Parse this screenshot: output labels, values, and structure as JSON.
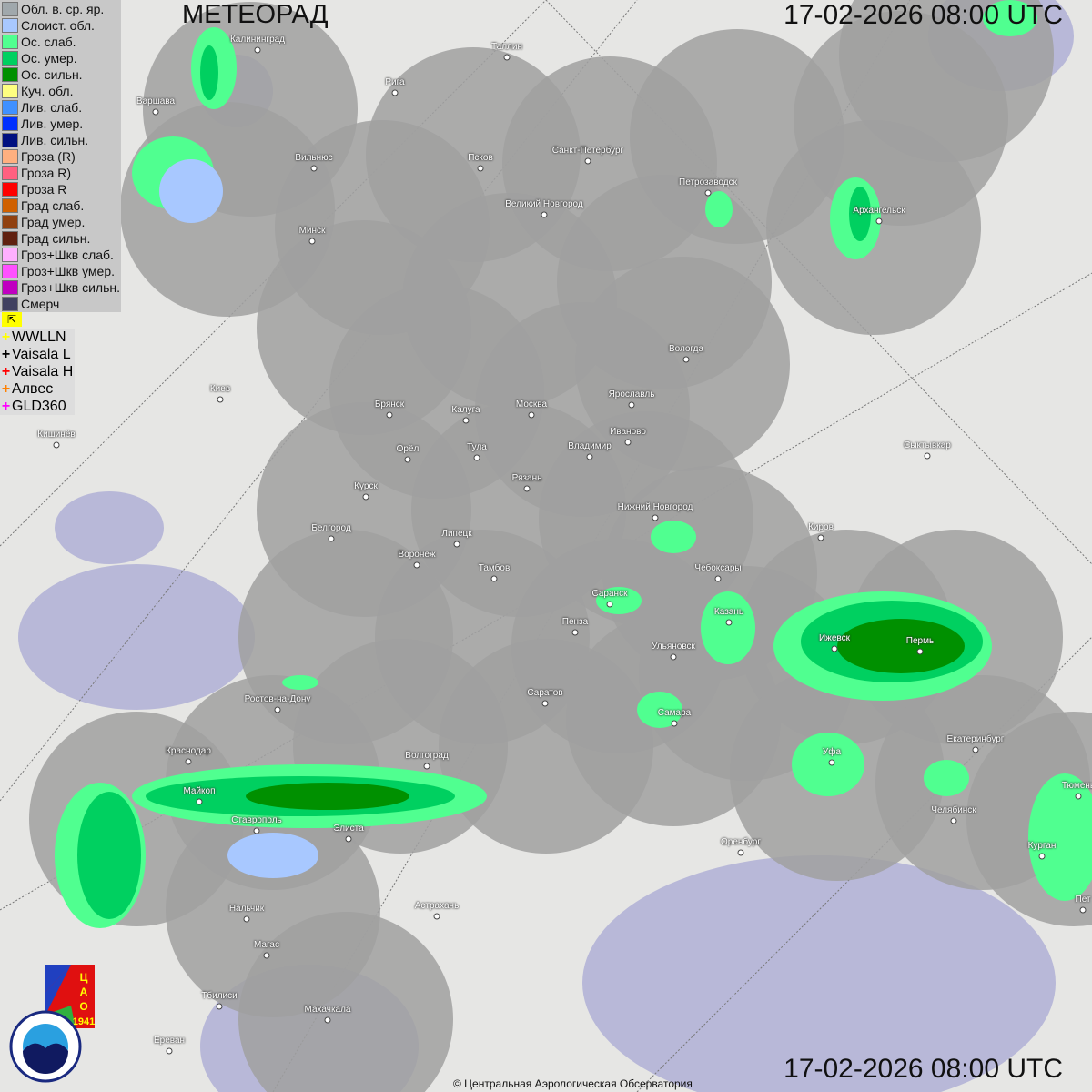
{
  "header": {
    "title": "МЕТЕОРАД",
    "datetime": "17-02-2026  08:00 UTC"
  },
  "footer": {
    "datetime": "17-02-2026  08:00 UTC",
    "copyright": "© Центральная Аэрологическая Обсерватория"
  },
  "legend": [
    {
      "label": "Обл. в. ср. яр.",
      "color": "#a0a8ac"
    },
    {
      "label": "Слоист. обл.",
      "color": "#a8c8ff"
    },
    {
      "label": "Ос. слаб.",
      "color": "#50ff90"
    },
    {
      "label": "Ос. умер.",
      "color": "#00d060"
    },
    {
      "label": "Ос. сильн.",
      "color": "#009000"
    },
    {
      "label": "Куч. обл.",
      "color": "#ffff80"
    },
    {
      "label": "Лив. слаб.",
      "color": "#4090ff"
    },
    {
      "label": "Лив. умер.",
      "color": "#0030ff"
    },
    {
      "label": "Лив. сильн.",
      "color": "#001080"
    },
    {
      "label": "Гроза (R)",
      "color": "#ffb080"
    },
    {
      "label": "Гроза R)",
      "color": "#ff6080"
    },
    {
      "label": "Гроза R",
      "color": "#ff0000"
    },
    {
      "label": "Град слаб.",
      "color": "#d06000"
    },
    {
      "label": "Град умер.",
      "color": "#904010"
    },
    {
      "label": "Град сильн.",
      "color": "#602010"
    },
    {
      "label": "Гроз+Шкв слаб.",
      "color": "#ffb0ff"
    },
    {
      "label": "Гроз+Шкв умер.",
      "color": "#ff50ff"
    },
    {
      "label": "Гроз+Шкв сильн.",
      "color": "#c000c0"
    },
    {
      "label": "Смерч",
      "color": "#404060"
    }
  ],
  "lightning_legend": [
    {
      "label": "WWLLN",
      "color": "#ffff00"
    },
    {
      "label": "Vaisala L",
      "color": "#000000"
    },
    {
      "label": "Vaisala H",
      "color": "#ff0000"
    },
    {
      "label": "Алвес",
      "color": "#ff8000"
    },
    {
      "label": "GLD360",
      "color": "#ff00ff"
    }
  ],
  "cities": [
    "Калининград",
    "Таллин",
    "Рига",
    "Варшава",
    "Санкт-Петербург",
    "Псков",
    "Вильнюс",
    "Петрозаводск",
    "Архангельск",
    "Великий Новгород",
    "Минск",
    "Вологда",
    "Киев",
    "Брянск",
    "Калуга",
    "Москва",
    "Ярославль",
    "Иваново",
    "Владимир",
    "Кишинёв",
    "Орёл",
    "Тула",
    "Сыктывкар",
    "Рязань",
    "Курск",
    "Нижний Новгород",
    "Белгород",
    "Липецк",
    "Киров",
    "Воронеж",
    "Тамбов",
    "Чебоксары",
    "Саранск",
    "Казань",
    "Пенза",
    "Ижевск",
    "Пермь",
    "Ульяновск",
    "Ростов-на-Дону",
    "Саратов",
    "Самара",
    "Краснодар",
    "Волгоград",
    "Уфа",
    "Екатеринбург",
    "Майкоп",
    "Ставрополь",
    "Элиста",
    "Челябинск",
    "Тюмень",
    "Оренбург",
    "Курган",
    "Нальчик",
    "Астрахань",
    "Магас",
    "Тбилиси",
    "Махачкала",
    "Ереван",
    "Пет"
  ],
  "logos": {
    "cao": "ЦАО 1941",
    "roshydromet": "РОСГИДРОМЕТ ROSHYDROMET"
  }
}
